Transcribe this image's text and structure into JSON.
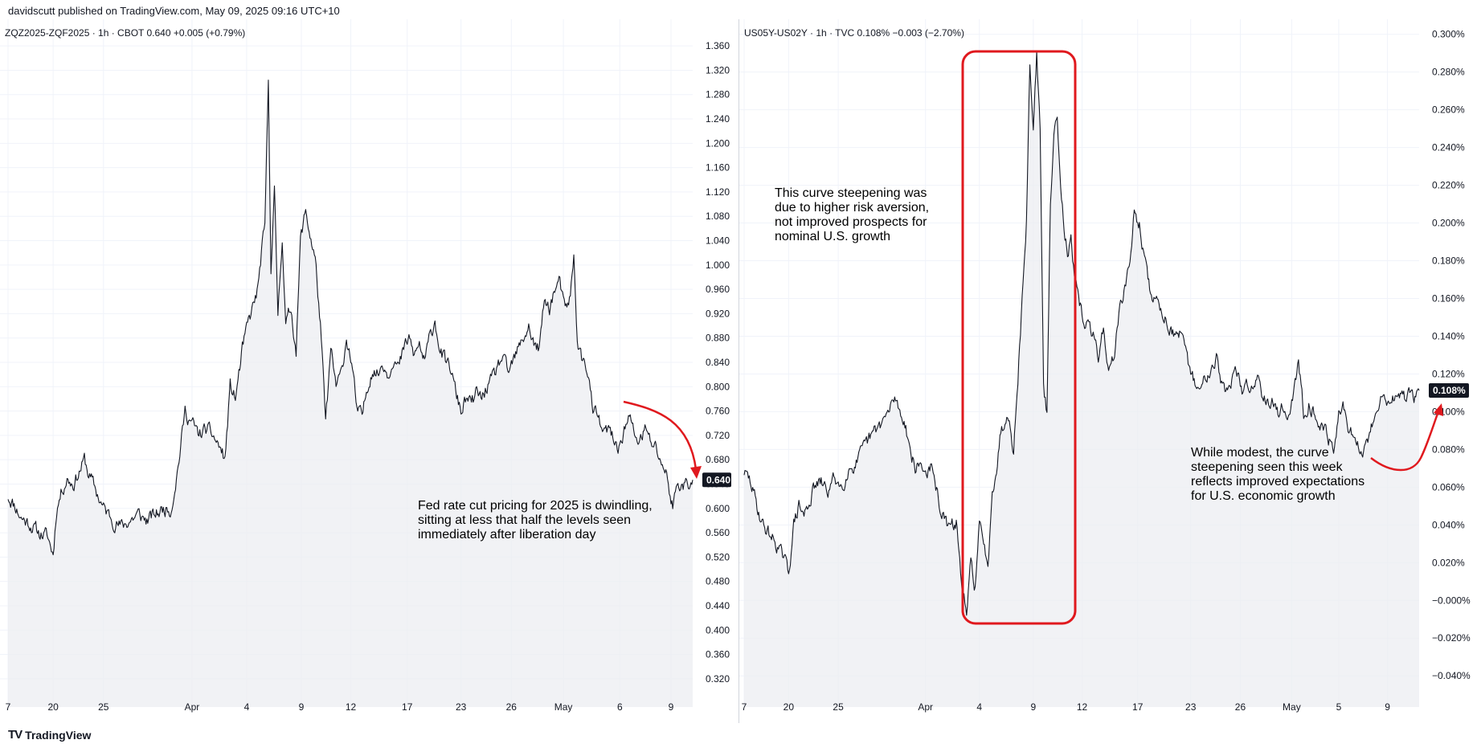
{
  "header": {
    "publisher": "davidscutt published on TradingView.com, May 09, 2025 09:16 UTC+10"
  },
  "footer": {
    "brand": "TradingView",
    "logo": "TV"
  },
  "colors": {
    "line": "#131722",
    "area": "#eceef2",
    "annotation_red": "#e0191e",
    "price_tag_bg": "#131722",
    "grid": "#f0f3fa"
  },
  "chart_data": [
    {
      "type": "area",
      "legend": "ZQZ2025-ZQF2025 · 1h · CBOT  0.640  +0.005 (+0.79%)",
      "last_value": "0.640",
      "ylim": [
        0.3,
        1.38
      ],
      "y_ticks": [
        "1.360",
        "1.320",
        "1.280",
        "1.240",
        "1.200",
        "1.160",
        "1.120",
        "1.080",
        "1.040",
        "1.000",
        "0.960",
        "0.920",
        "0.880",
        "0.840",
        "0.800",
        "0.760",
        "0.720",
        "0.680",
        "0.640",
        "0.600",
        "0.560",
        "0.520",
        "0.480",
        "0.440",
        "0.400",
        "0.360",
        "0.320"
      ],
      "y_tick_values": [
        1.36,
        1.32,
        1.28,
        1.24,
        1.2,
        1.16,
        1.12,
        1.08,
        1.04,
        1.0,
        0.96,
        0.92,
        0.88,
        0.84,
        0.8,
        0.76,
        0.72,
        0.68,
        0.64,
        0.6,
        0.56,
        0.52,
        0.48,
        0.44,
        0.4,
        0.36,
        0.32
      ],
      "x_ticks": [
        {
          "label": "7",
          "i": 0
        },
        {
          "label": "20",
          "i": 52
        },
        {
          "label": "25",
          "i": 110
        },
        {
          "label": "Apr",
          "i": 212
        },
        {
          "label": "4",
          "i": 275
        },
        {
          "label": "9",
          "i": 338
        },
        {
          "label": "12",
          "i": 395
        },
        {
          "label": "17",
          "i": 460
        },
        {
          "label": "23",
          "i": 522
        },
        {
          "label": "26",
          "i": 580
        },
        {
          "label": "May",
          "i": 640
        },
        {
          "label": "6",
          "i": 705
        },
        {
          "label": "9",
          "i": 764
        }
      ],
      "n_points": 790,
      "key_points": [
        [
          0,
          0.62
        ],
        [
          8,
          0.605
        ],
        [
          15,
          0.585
        ],
        [
          25,
          0.575
        ],
        [
          35,
          0.56
        ],
        [
          45,
          0.555
        ],
        [
          52,
          0.525
        ],
        [
          56,
          0.6
        ],
        [
          62,
          0.63
        ],
        [
          68,
          0.65
        ],
        [
          75,
          0.64
        ],
        [
          82,
          0.66
        ],
        [
          88,
          0.68
        ],
        [
          92,
          0.66
        ],
        [
          98,
          0.64
        ],
        [
          104,
          0.62
        ],
        [
          110,
          0.6
        ],
        [
          116,
          0.59
        ],
        [
          122,
          0.58
        ],
        [
          130,
          0.57
        ],
        [
          140,
          0.58
        ],
        [
          150,
          0.59
        ],
        [
          160,
          0.58
        ],
        [
          170,
          0.59
        ],
        [
          180,
          0.6
        ],
        [
          188,
          0.6
        ],
        [
          196,
          0.67
        ],
        [
          204,
          0.76
        ],
        [
          212,
          0.74
        ],
        [
          220,
          0.72
        ],
        [
          228,
          0.73
        ],
        [
          236,
          0.72
        ],
        [
          244,
          0.7
        ],
        [
          250,
          0.68
        ],
        [
          256,
          0.8
        ],
        [
          262,
          0.78
        ],
        [
          270,
          0.86
        ],
        [
          276,
          0.9
        ],
        [
          282,
          0.93
        ],
        [
          288,
          0.96
        ],
        [
          292,
          1.02
        ],
        [
          296,
          1.06
        ],
        [
          300,
          1.3
        ],
        [
          303,
          1.0
        ],
        [
          307,
          1.12
        ],
        [
          311,
          0.92
        ],
        [
          316,
          1.05
        ],
        [
          320,
          0.9
        ],
        [
          326,
          0.93
        ],
        [
          332,
          0.86
        ],
        [
          337,
          1.04
        ],
        [
          343,
          1.09
        ],
        [
          348,
          1.05
        ],
        [
          354,
          1.01
        ],
        [
          360,
          0.9
        ],
        [
          366,
          0.74
        ],
        [
          372,
          0.86
        ],
        [
          378,
          0.8
        ],
        [
          384,
          0.82
        ],
        [
          390,
          0.88
        ],
        [
          396,
          0.84
        ],
        [
          402,
          0.76
        ],
        [
          408,
          0.75
        ],
        [
          414,
          0.8
        ],
        [
          420,
          0.83
        ],
        [
          426,
          0.82
        ],
        [
          432,
          0.84
        ],
        [
          438,
          0.82
        ],
        [
          444,
          0.85
        ],
        [
          450,
          0.83
        ],
        [
          456,
          0.86
        ],
        [
          462,
          0.88
        ],
        [
          468,
          0.85
        ],
        [
          474,
          0.87
        ],
        [
          480,
          0.84
        ],
        [
          486,
          0.88
        ],
        [
          492,
          0.91
        ],
        [
          498,
          0.86
        ],
        [
          504,
          0.84
        ],
        [
          510,
          0.83
        ],
        [
          516,
          0.79
        ],
        [
          522,
          0.76
        ],
        [
          528,
          0.78
        ],
        [
          534,
          0.77
        ],
        [
          540,
          0.79
        ],
        [
          546,
          0.78
        ],
        [
          552,
          0.8
        ],
        [
          558,
          0.81
        ],
        [
          564,
          0.83
        ],
        [
          570,
          0.85
        ],
        [
          576,
          0.82
        ],
        [
          582,
          0.84
        ],
        [
          588,
          0.86
        ],
        [
          594,
          0.88
        ],
        [
          600,
          0.9
        ],
        [
          606,
          0.87
        ],
        [
          612,
          0.86
        ],
        [
          618,
          0.94
        ],
        [
          624,
          0.93
        ],
        [
          630,
          0.96
        ],
        [
          636,
          0.97
        ],
        [
          642,
          0.92
        ],
        [
          648,
          0.95
        ],
        [
          652,
          1.01
        ],
        [
          656,
          0.88
        ],
        [
          662,
          0.84
        ],
        [
          668,
          0.83
        ],
        [
          674,
          0.76
        ],
        [
          680,
          0.75
        ],
        [
          686,
          0.72
        ],
        [
          692,
          0.73
        ],
        [
          698,
          0.71
        ],
        [
          704,
          0.7
        ],
        [
          710,
          0.73
        ],
        [
          716,
          0.75
        ],
        [
          722,
          0.72
        ],
        [
          728,
          0.71
        ],
        [
          734,
          0.73
        ],
        [
          740,
          0.71
        ],
        [
          746,
          0.7
        ],
        [
          752,
          0.68
        ],
        [
          758,
          0.66
        ],
        [
          762,
          0.63
        ],
        [
          766,
          0.605
        ],
        [
          772,
          0.64
        ],
        [
          778,
          0.64
        ]
      ]
    },
    {
      "type": "area",
      "legend": "US05Y-US02Y · 1h · TVC  0.108%  −0.003 (−2.70%)",
      "last_value": "0.108%",
      "ylim": [
        -0.048,
        0.302
      ],
      "y_ticks": [
        "0.300%",
        "0.280%",
        "0.260%",
        "0.240%",
        "0.220%",
        "0.200%",
        "0.180%",
        "0.160%",
        "0.140%",
        "0.120%",
        "0.100%",
        "0.080%",
        "0.060%",
        "0.040%",
        "0.020%",
        "−0.000%",
        "−0.020%",
        "−0.040%"
      ],
      "y_tick_values": [
        0.3,
        0.28,
        0.26,
        0.24,
        0.22,
        0.2,
        0.18,
        0.16,
        0.14,
        0.12,
        0.1,
        0.08,
        0.06,
        0.04,
        0.02,
        0.0,
        -0.02,
        -0.04
      ],
      "x_ticks": [
        {
          "label": "7",
          "i": 0
        },
        {
          "label": "20",
          "i": 52
        },
        {
          "label": "25",
          "i": 110
        },
        {
          "label": "Apr",
          "i": 212
        },
        {
          "label": "4",
          "i": 275
        },
        {
          "label": "9",
          "i": 338
        },
        {
          "label": "12",
          "i": 395
        },
        {
          "label": "17",
          "i": 460
        },
        {
          "label": "23",
          "i": 522
        },
        {
          "label": "26",
          "i": 580
        },
        {
          "label": "May",
          "i": 640
        },
        {
          "label": "5",
          "i": 695
        },
        {
          "label": "9",
          "i": 752
        }
      ],
      "n_points": 790,
      "key_points": [
        [
          0,
          0.068
        ],
        [
          8,
          0.062
        ],
        [
          15,
          0.05
        ],
        [
          22,
          0.04
        ],
        [
          30,
          0.035
        ],
        [
          38,
          0.03
        ],
        [
          46,
          0.022
        ],
        [
          52,
          0.015
        ],
        [
          58,
          0.04
        ],
        [
          64,
          0.05
        ],
        [
          70,
          0.045
        ],
        [
          76,
          0.052
        ],
        [
          82,
          0.06
        ],
        [
          90,
          0.062
        ],
        [
          98,
          0.058
        ],
        [
          106,
          0.065
        ],
        [
          114,
          0.06
        ],
        [
          122,
          0.07
        ],
        [
          130,
          0.072
        ],
        [
          138,
          0.078
        ],
        [
          146,
          0.085
        ],
        [
          154,
          0.09
        ],
        [
          162,
          0.095
        ],
        [
          170,
          0.1
        ],
        [
          176,
          0.108
        ],
        [
          182,
          0.1
        ],
        [
          188,
          0.095
        ],
        [
          194,
          0.08
        ],
        [
          200,
          0.07
        ],
        [
          206,
          0.072
        ],
        [
          212,
          0.068
        ],
        [
          218,
          0.07
        ],
        [
          224,
          0.06
        ],
        [
          230,
          0.048
        ],
        [
          236,
          0.04
        ],
        [
          242,
          0.038
        ],
        [
          248,
          0.042
        ],
        [
          254,
          0.01
        ],
        [
          260,
          -0.01
        ],
        [
          265,
          0.02
        ],
        [
          270,
          0.008
        ],
        [
          275,
          0.04
        ],
        [
          280,
          0.028
        ],
        [
          285,
          0.02
        ],
        [
          290,
          0.06
        ],
        [
          295,
          0.07
        ],
        [
          300,
          0.09
        ],
        [
          305,
          0.095
        ],
        [
          310,
          0.1
        ],
        [
          315,
          0.08
        ],
        [
          320,
          0.118
        ],
        [
          325,
          0.16
        ],
        [
          330,
          0.2
        ],
        [
          334,
          0.285
        ],
        [
          338,
          0.25
        ],
        [
          342,
          0.29
        ],
        [
          346,
          0.25
        ],
        [
          350,
          0.11
        ],
        [
          354,
          0.1
        ],
        [
          358,
          0.21
        ],
        [
          362,
          0.245
        ],
        [
          366,
          0.26
        ],
        [
          370,
          0.22
        ],
        [
          374,
          0.2
        ],
        [
          378,
          0.185
        ],
        [
          382,
          0.19
        ],
        [
          386,
          0.17
        ],
        [
          390,
          0.16
        ],
        [
          396,
          0.15
        ],
        [
          402,
          0.145
        ],
        [
          408,
          0.14
        ],
        [
          414,
          0.13
        ],
        [
          420,
          0.145
        ],
        [
          426,
          0.12
        ],
        [
          432,
          0.13
        ],
        [
          438,
          0.15
        ],
        [
          444,
          0.165
        ],
        [
          450,
          0.175
        ],
        [
          456,
          0.205
        ],
        [
          462,
          0.2
        ],
        [
          468,
          0.18
        ],
        [
          474,
          0.165
        ],
        [
          480,
          0.16
        ],
        [
          486,
          0.155
        ],
        [
          492,
          0.15
        ],
        [
          498,
          0.145
        ],
        [
          504,
          0.14
        ],
        [
          510,
          0.14
        ],
        [
          516,
          0.13
        ],
        [
          522,
          0.12
        ],
        [
          528,
          0.115
        ],
        [
          534,
          0.11
        ],
        [
          540,
          0.12
        ],
        [
          546,
          0.125
        ],
        [
          552,
          0.13
        ],
        [
          558,
          0.115
        ],
        [
          564,
          0.11
        ],
        [
          570,
          0.118
        ],
        [
          576,
          0.12
        ],
        [
          582,
          0.11
        ],
        [
          588,
          0.115
        ],
        [
          594,
          0.112
        ],
        [
          600,
          0.12
        ],
        [
          606,
          0.11
        ],
        [
          612,
          0.108
        ],
        [
          618,
          0.105
        ],
        [
          624,
          0.1
        ],
        [
          630,
          0.102
        ],
        [
          636,
          0.098
        ],
        [
          642,
          0.11
        ],
        [
          648,
          0.125
        ],
        [
          654,
          0.1
        ],
        [
          660,
          0.105
        ],
        [
          666,
          0.1
        ],
        [
          672,
          0.095
        ],
        [
          678,
          0.09
        ],
        [
          684,
          0.085
        ],
        [
          690,
          0.08
        ],
        [
          696,
          0.1
        ],
        [
          702,
          0.102
        ],
        [
          708,
          0.09
        ],
        [
          714,
          0.085
        ],
        [
          720,
          0.08
        ],
        [
          726,
          0.08
        ],
        [
          732,
          0.09
        ],
        [
          738,
          0.1
        ],
        [
          744,
          0.11
        ],
        [
          750,
          0.105
        ],
        [
          756,
          0.108
        ]
      ]
    }
  ],
  "annotations": {
    "left_text": [
      "Fed rate cut pricing for 2025 is dwindling,",
      "sitting at less that half the levels seen",
      "immediately after liberation day"
    ],
    "right_top_text": [
      "This curve steepening was",
      "due to higher risk aversion,",
      "not improved prospects for",
      "nominal U.S. growth"
    ],
    "right_bottom_text": [
      "While modest, the curve",
      "steepening seen this week",
      "reflects improved expectations",
      "for U.S. economic growth"
    ]
  }
}
